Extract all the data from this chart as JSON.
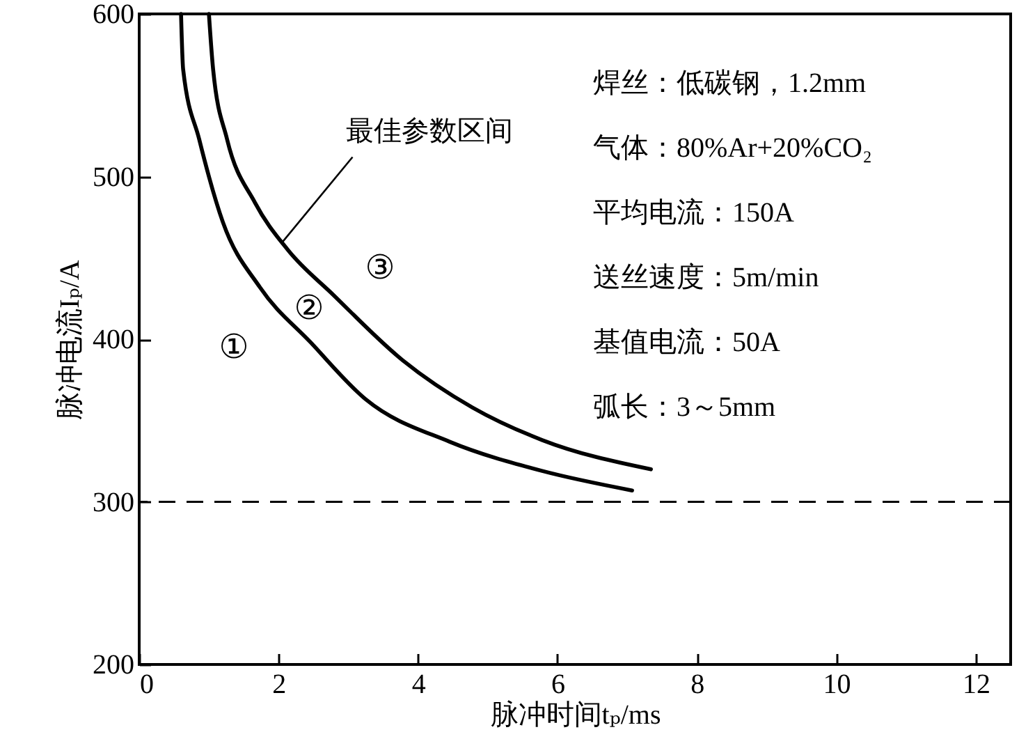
{
  "chart_data": {
    "type": "line",
    "xlabel": "脉冲时间tₚ/ms",
    "ylabel": "脉冲电流Iₚ/A",
    "xlim": [
      0,
      12.5
    ],
    "xticks": [
      0,
      2,
      4,
      6,
      8,
      10,
      12
    ],
    "ylim": [
      200,
      600
    ],
    "yticks": [
      200,
      300,
      400,
      500,
      600
    ],
    "grid": false,
    "marker": "none",
    "line_style": "solid",
    "series": [
      {
        "color": "#000000",
        "x": [
          0.6,
          0.63,
          0.86,
          1.2,
          1.73,
          2.46,
          3.25,
          4.45,
          5.78,
          7.07
        ],
        "values": [
          600,
          566,
          523,
          472,
          432,
          398,
          363,
          337,
          319,
          307
        ]
      },
      {
        "color": "#000000",
        "x": [
          1.0,
          1.06,
          1.26,
          1.66,
          2.13,
          2.79,
          3.78,
          4.78,
          5.78,
          7.34
        ],
        "values": [
          600,
          566,
          523,
          484,
          455,
          427,
          387,
          358,
          338,
          320
        ]
      }
    ],
    "ref_lines": [
      {
        "axis": "y",
        "value": 300,
        "line_style": "dashed",
        "color": "#000000"
      }
    ],
    "annotations": [
      {
        "text": "最佳参数区间",
        "x": 2.06,
        "y": 460
      },
      "①",
      "②",
      "③",
      "焊丝：低碳钢，1.2mm",
      "气体：80%Ar+20%CO₂",
      "平均电流：150A",
      "送丝速度：5m/min",
      "基值电流：50A",
      "弧长：3～5mm"
    ]
  }
}
